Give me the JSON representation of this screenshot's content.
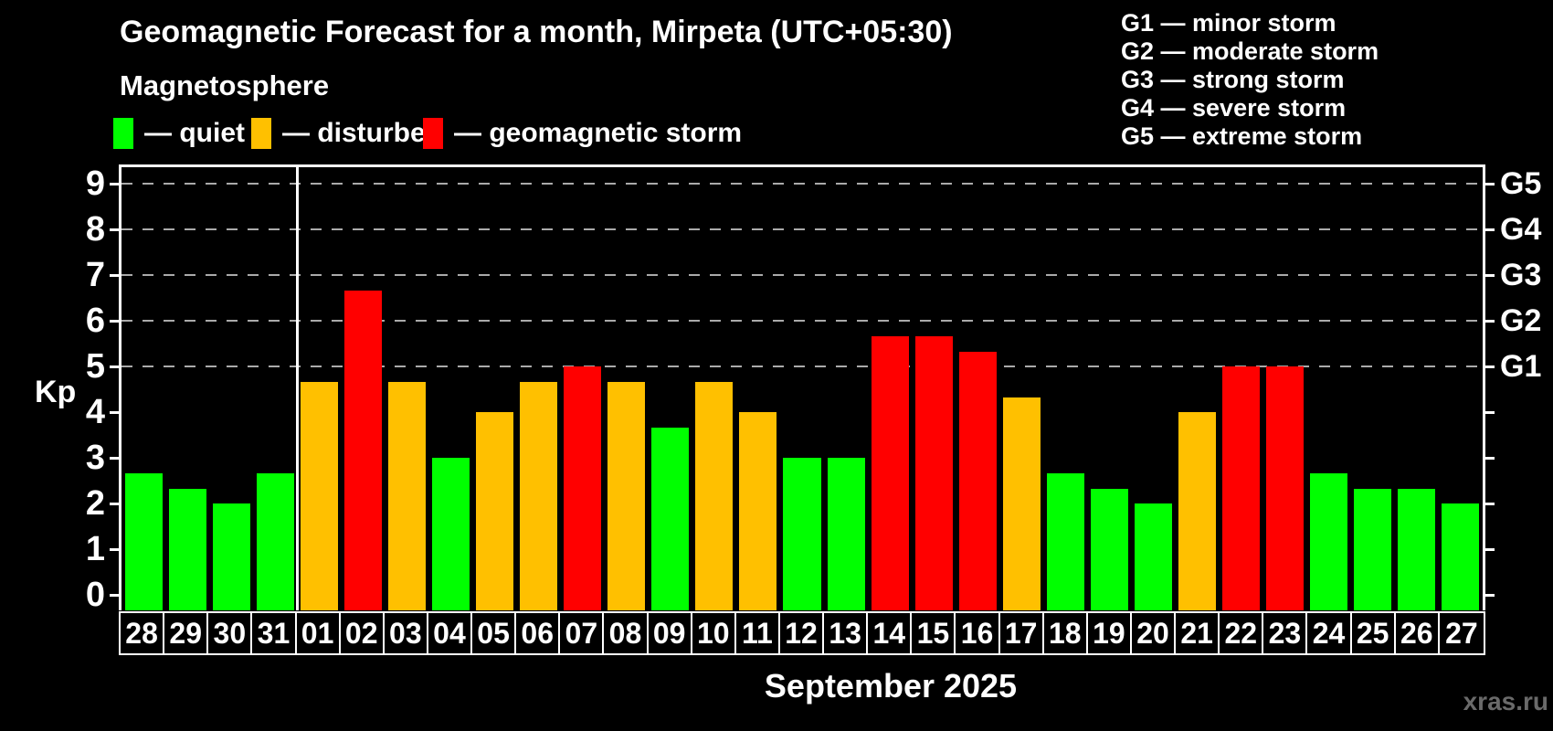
{
  "header": {
    "title": "Geomagnetic Forecast for a month, Mirpeta (UTC+05:30)",
    "subtitle": "Magnetosphere"
  },
  "legend": {
    "items": [
      {
        "key": "quiet",
        "label": "— quiet"
      },
      {
        "key": "disturbed",
        "label": "— disturbed"
      },
      {
        "key": "storm",
        "label": "— geomagnetic storm"
      }
    ]
  },
  "g_scale": [
    "G1 — minor storm",
    "G2 — moderate storm",
    "G3 — strong storm",
    "G4 — severe storm",
    "G5 — extreme storm"
  ],
  "colors": {
    "quiet": "#00ff00",
    "disturbed": "#ffc000",
    "storm": "#ff0000",
    "grid": "#aaaaaa",
    "watermark": "#6a6a6a"
  },
  "axis": {
    "y_label": "Kp",
    "y_ticks": [
      0,
      1,
      2,
      3,
      4,
      5,
      6,
      7,
      8,
      9
    ],
    "right_g_labels": {
      "5": "G1",
      "6": "G2",
      "7": "G3",
      "8": "G4",
      "9": "G5"
    }
  },
  "footer": {
    "watermark": "xras.ru"
  },
  "chart_data": {
    "type": "bar",
    "title": "Geomagnetic Forecast for a month, Mirpeta (UTC+05:30)",
    "xlabel": "September 2025",
    "ylabel": "Kp",
    "ylim": [
      -0.35,
      9.35
    ],
    "grid": "dashed horizontal at storm levels only",
    "gridlines_at": [
      5,
      6,
      7,
      8,
      9
    ],
    "separator_after_index": 3,
    "categories": [
      "28",
      "29",
      "30",
      "31",
      "01",
      "02",
      "03",
      "04",
      "05",
      "06",
      "07",
      "08",
      "09",
      "10",
      "11",
      "12",
      "13",
      "14",
      "15",
      "16",
      "17",
      "18",
      "19",
      "20",
      "21",
      "22",
      "23",
      "24",
      "25",
      "26",
      "27"
    ],
    "values": [
      2.67,
      2.33,
      2.0,
      2.67,
      4.67,
      6.67,
      4.67,
      3.0,
      4.0,
      4.67,
      5.0,
      4.67,
      3.67,
      4.67,
      4.0,
      3.0,
      3.0,
      5.67,
      5.67,
      5.33,
      4.33,
      2.67,
      2.33,
      2.0,
      4.0,
      5.0,
      5.0,
      2.67,
      2.33,
      2.33,
      2.0
    ],
    "statuses": [
      "quiet",
      "quiet",
      "quiet",
      "quiet",
      "disturbed",
      "storm",
      "disturbed",
      "quiet",
      "disturbed",
      "disturbed",
      "storm",
      "disturbed",
      "quiet",
      "disturbed",
      "disturbed",
      "quiet",
      "quiet",
      "storm",
      "storm",
      "storm",
      "disturbed",
      "quiet",
      "quiet",
      "quiet",
      "disturbed",
      "storm",
      "storm",
      "quiet",
      "quiet",
      "quiet",
      "quiet"
    ]
  }
}
